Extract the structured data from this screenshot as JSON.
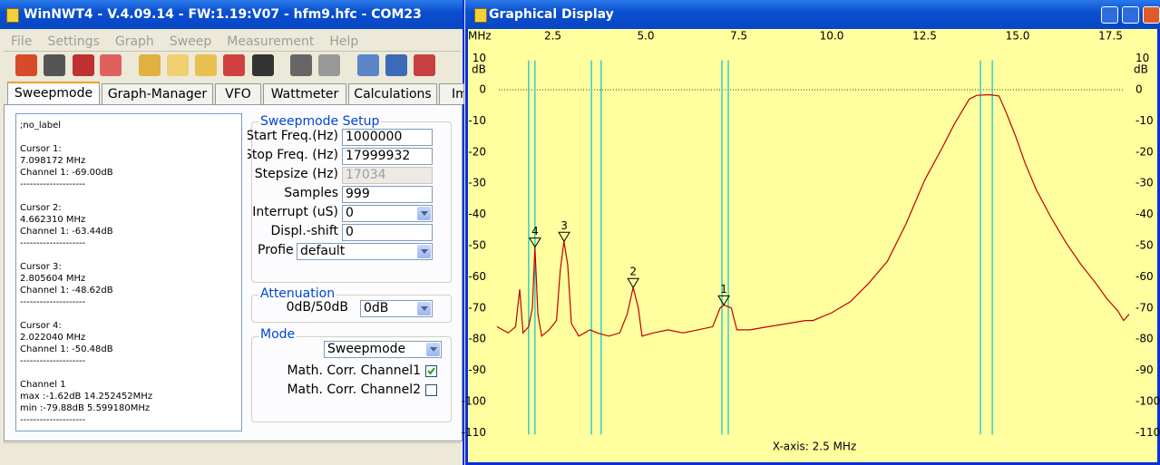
{
  "main_window": {
    "title": "WinNWT4 - V.4.09.14 - FW:1.19:V07 - hfm9.hfc - COM23",
    "menu": [
      "File",
      "Settings",
      "Graph",
      "Sweep",
      "Measurement",
      "Help"
    ],
    "tabs": [
      "Sweepmode",
      "Graph-Manager",
      "VFO",
      "Wattmeter",
      "Calculations",
      "Im"
    ],
    "info_blocks": [
      [
        ";no_label"
      ],
      [
        "Cursor 1:",
        "7.098172 MHz",
        "Channel 1: -69.00dB",
        "--------------------"
      ],
      [
        "Cursor 2:",
        "4.662310 MHz",
        "Channel 1: -63.44dB",
        "--------------------"
      ],
      [
        "Cursor 3:",
        "2.805604 MHz",
        "Channel 1: -48.62dB",
        "--------------------"
      ],
      [
        "Cursor 4:",
        "2.022040 MHz",
        "Channel 1: -50.48dB",
        "--------------------"
      ],
      [
        "Channel 1",
        "max :-1.62dB 14.252452MHz",
        "min :-79.88dB 5.599180MHz",
        "--------------------"
      ]
    ],
    "sweep_setup": {
      "title": "Sweepmode Setup",
      "fields": [
        {
          "label": "Start Freq.(Hz)",
          "value": "1000000",
          "kind": "text"
        },
        {
          "label": "Stop Freq. (Hz)",
          "value": "17999932",
          "kind": "text"
        },
        {
          "label": "Stepsize (Hz)",
          "value": "17034",
          "kind": "disabled"
        },
        {
          "label": "Samples",
          "value": "999",
          "kind": "text"
        },
        {
          "label": "Interrupt (uS)",
          "value": "0",
          "kind": "combo"
        },
        {
          "label": "Displ.-shift",
          "value": "0",
          "kind": "text"
        },
        {
          "label": "Profie",
          "value": "default",
          "kind": "wide-combo"
        }
      ]
    },
    "attenuation": {
      "title": "Attenuation",
      "label": "0dB/50dB",
      "value": "0dB"
    },
    "mode": {
      "title": "Mode",
      "value": "Sweepmode",
      "checks": [
        {
          "label": "Math. Corr. Channel1",
          "checked": true
        },
        {
          "label": "Math. Corr. Channel2",
          "checked": false
        }
      ]
    }
  },
  "graph_window": {
    "title": "Graphical Display",
    "x_caption": "X-axis: 2.5 MHz"
  },
  "chart_data": {
    "type": "line",
    "x_unit": "MHz",
    "y_unit": "dB",
    "xlim": [
      1,
      18
    ],
    "xticks": [
      2.5,
      {
        "value": 5,
        "label": "5.0"
      },
      7.5,
      {
        "value": 10,
        "label": "10.0"
      },
      12.5,
      {
        "value": 15,
        "label": "15.0"
      },
      17.5
    ],
    "ylim": [
      -110,
      10
    ],
    "yticks": [
      10,
      0,
      -10,
      -20,
      -30,
      -40,
      -50,
      -60,
      -70,
      -80,
      -90,
      -100,
      -110
    ],
    "reference_line": 0,
    "color": "#c00000",
    "x": [
      1.0,
      1.3,
      1.5,
      1.61,
      1.7,
      1.85,
      1.95,
      2.02,
      2.1,
      2.2,
      2.4,
      2.6,
      2.7,
      2.8,
      2.9,
      3.0,
      3.2,
      3.5,
      3.7,
      4.0,
      4.3,
      4.5,
      4.66,
      4.8,
      4.9,
      5.2,
      5.6,
      6.0,
      6.4,
      6.8,
      7.0,
      7.1,
      7.3,
      7.45,
      7.8,
      8.3,
      8.8,
      9.3,
      9.5,
      10.0,
      10.5,
      11.0,
      11.5,
      12.0,
      12.5,
      13.0,
      13.3,
      13.5,
      13.7,
      13.9,
      14.25,
      14.5,
      14.7,
      14.95,
      15.2,
      15.5,
      15.9,
      16.3,
      16.7,
      17.1,
      17.4,
      17.7,
      17.85,
      18.0
    ],
    "values": [
      -76,
      -78,
      -76,
      -64,
      -78,
      -76,
      -70,
      -50.5,
      -72,
      -79,
      -77,
      -74,
      -58,
      -48.6,
      -56,
      -75,
      -79,
      -77,
      -78,
      -79,
      -78,
      -72,
      -63.4,
      -70,
      -79,
      -78,
      -77,
      -78,
      -77,
      -76,
      -70,
      -69,
      -70,
      -77,
      -77,
      -76,
      -75,
      -74,
      -74,
      -71.5,
      -68,
      -62,
      -55,
      -43,
      -29,
      -18,
      -11,
      -7,
      -3,
      -1.8,
      -1.6,
      -2,
      -7.5,
      -15,
      -23.5,
      -32,
      -41,
      -49,
      -56,
      -62,
      -67,
      -71,
      -74,
      -72
    ],
    "cursor_line_color": "#33cccc",
    "cursor_lines": [
      1.85,
      2.02,
      3.54,
      3.8,
      7.05,
      7.22,
      14.0,
      14.32
    ],
    "markers": [
      {
        "label": "1",
        "x": 7.098172,
        "y": -69
      },
      {
        "label": "2",
        "x": 4.66231,
        "y": -63.44
      },
      {
        "label": "3",
        "x": 2.805604,
        "y": -48.62
      },
      {
        "label": "4",
        "x": 2.02204,
        "y": -50.48
      }
    ]
  }
}
